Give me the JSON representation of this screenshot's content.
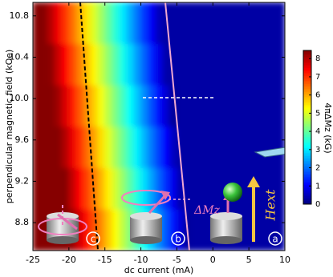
{
  "chart_data": {
    "type": "heatmap",
    "xlabel": "dc current (mA)",
    "ylabel": "perpendicular magnetic field (kOe)",
    "colorbar_label": "4πΔMz (kG)",
    "colormap": "jet",
    "xlim": [
      -25,
      10
    ],
    "xticks": [
      -25,
      -20,
      -15,
      -10,
      -5,
      0,
      5,
      10
    ],
    "ylim": [
      8.53,
      10.93
    ],
    "yticks": [
      8.8,
      9.2,
      9.6,
      {
        "value": 10,
        "label": "10.0"
      },
      10.4,
      10.8
    ],
    "zlim": [
      0,
      8.45
    ],
    "zticks": [
      0,
      1,
      2,
      3,
      4,
      5,
      6,
      7,
      8
    ],
    "xbins": [
      -25,
      -24,
      -23,
      -22,
      -21,
      -20,
      -19,
      -18,
      -17,
      -16,
      -15,
      -14,
      -13,
      -12,
      -11,
      -10,
      -9,
      -8,
      -7,
      -6,
      -5,
      -4,
      -3,
      -2,
      -1,
      0,
      1,
      2,
      3,
      4,
      5,
      6,
      7,
      8,
      9,
      10
    ],
    "ybins": [
      8.53,
      8.93,
      9.33,
      9.73,
      10.13,
      10.53,
      10.93
    ],
    "z": [
      [
        8.4,
        8.4,
        8.4,
        8.4,
        8.4,
        8.25,
        7.75,
        7.25,
        6.75,
        6.25,
        5.75,
        5.25,
        4.75,
        4.25,
        3.75,
        3.25,
        2.75,
        2.25,
        1.75,
        1.25,
        0.75,
        0.25,
        0.3,
        0.3,
        0.3,
        0.3,
        0.3,
        0.3,
        0.3,
        0.3,
        0.3,
        0.3,
        0.3,
        0.3,
        0.3
      ],
      [
        8.4,
        8.4,
        8.4,
        8.4,
        8.4,
        7.9,
        7.4,
        6.9,
        6.4,
        5.9,
        5.4,
        4.9,
        4.4,
        3.9,
        3.4,
        2.9,
        2.4,
        1.9,
        1.4,
        0.9,
        0.4,
        0.3,
        0.3,
        0.3,
        0.3,
        0.3,
        0.3,
        0.3,
        0.3,
        0.3,
        0.3,
        0.3,
        0.3,
        0.3,
        0.3
      ],
      [
        8.4,
        8.4,
        8.4,
        8.4,
        8.05,
        7.55,
        7.05,
        6.55,
        6.05,
        5.55,
        5.05,
        4.55,
        4.05,
        3.55,
        3.05,
        2.55,
        2.05,
        1.55,
        1.05,
        0.55,
        0.3,
        0.3,
        0.3,
        0.3,
        0.3,
        0.3,
        0.3,
        0.3,
        0.3,
        0.3,
        0.3,
        0.3,
        0.3,
        0.3,
        0.3
      ],
      [
        8.4,
        8.4,
        8.4,
        8.2,
        7.7,
        7.2,
        6.7,
        6.2,
        5.7,
        5.2,
        4.7,
        4.2,
        3.7,
        3.2,
        2.7,
        2.2,
        1.7,
        1.2,
        0.7,
        0.2,
        0.3,
        0.3,
        0.3,
        0.3,
        0.3,
        0.3,
        0.3,
        0.3,
        0.3,
        0.3,
        0.3,
        0.3,
        0.3,
        0.3,
        0.3
      ],
      [
        8.4,
        8.4,
        8.35,
        7.85,
        7.35,
        6.85,
        6.35,
        5.85,
        5.35,
        4.85,
        4.35,
        3.85,
        3.35,
        2.85,
        2.35,
        1.85,
        1.35,
        0.85,
        0.35,
        0.3,
        0.3,
        0.3,
        0.3,
        0.3,
        0.3,
        0.3,
        0.3,
        0.3,
        0.3,
        0.3,
        0.3,
        0.3,
        0.3,
        0.3,
        0.3
      ],
      [
        8.4,
        8.4,
        8.0,
        7.5,
        7.0,
        6.5,
        6.0,
        5.5,
        5.0,
        4.5,
        4.0,
        3.5,
        3.0,
        2.5,
        2.0,
        1.5,
        1.0,
        0.5,
        0.3,
        0.3,
        0.3,
        0.3,
        0.3,
        0.3,
        0.3,
        0.3,
        0.3,
        0.3,
        0.3,
        0.3,
        0.3,
        0.3,
        0.3,
        0.3,
        0.3
      ]
    ],
    "annotations": {
      "a": "a",
      "b": "b",
      "c": "c",
      "delta_m": "ΔMz",
      "field": "Hext"
    }
  }
}
